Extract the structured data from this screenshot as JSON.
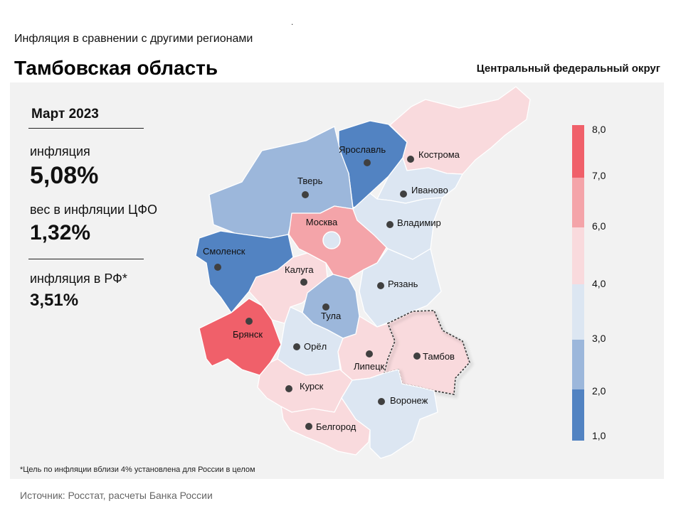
{
  "header": {
    "dot": ".",
    "subtitle": "Инфляция в сравнении с другими регионами",
    "title": "Тамбовская область",
    "district": "Центральный федеральный округ"
  },
  "stats": {
    "period": "Март 2023",
    "inflation_label": "инфляция",
    "inflation_value": "5,08%",
    "weight_label": "вес в инфляции ЦФО",
    "weight_value": "1,32%",
    "rf_label": "инфляция в РФ*",
    "rf_value": "3,51%"
  },
  "footnote": "*Цель по инфляции вблизи 4% установлена для России в целом",
  "source": "Источник: Росстат, расчеты Банка России",
  "legend": {
    "ticks": [
      "8,0",
      "7,0",
      "6,0",
      "4,0",
      "3,0",
      "2,0",
      "1,0"
    ],
    "colors": [
      "#f0606a",
      "#f4a4a9",
      "#f9dadd",
      "#dce6f2",
      "#9cb7db",
      "#5283c2"
    ]
  },
  "regions": [
    {
      "name": "Ярославль",
      "color": "#5283c2"
    },
    {
      "name": "Кострома",
      "color": "#f9dadd"
    },
    {
      "name": "Тверь",
      "color": "#9cb7db"
    },
    {
      "name": "Иваново",
      "color": "#dce6f2"
    },
    {
      "name": "Москва",
      "color": "#f4a4a9"
    },
    {
      "name": "Владимир",
      "color": "#dce6f2"
    },
    {
      "name": "Смоленск",
      "color": "#5283c2"
    },
    {
      "name": "Калуга",
      "color": "#f9dadd"
    },
    {
      "name": "Рязань",
      "color": "#dce6f2"
    },
    {
      "name": "Тула",
      "color": "#9cb7db"
    },
    {
      "name": "Брянск",
      "color": "#f0606a"
    },
    {
      "name": "Орёл",
      "color": "#dce6f2"
    },
    {
      "name": "Липецк",
      "color": "#f9dadd"
    },
    {
      "name": "Тамбов",
      "color": "#f9dadd"
    },
    {
      "name": "Курск",
      "color": "#f9dadd"
    },
    {
      "name": "Воронеж",
      "color": "#dce6f2"
    },
    {
      "name": "Белгород",
      "color": "#f9dadd"
    }
  ]
}
